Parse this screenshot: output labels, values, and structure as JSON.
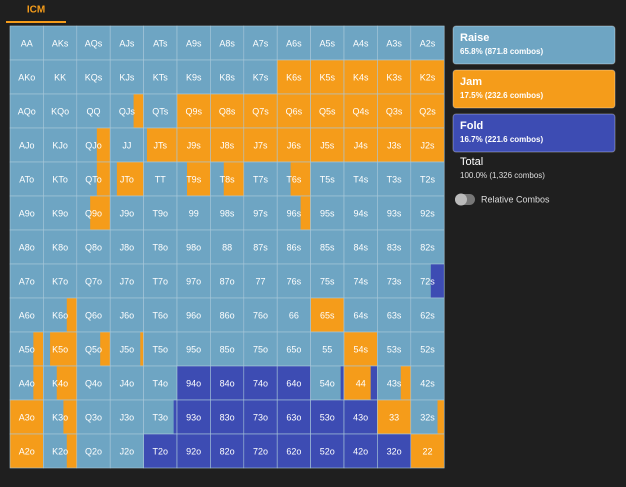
{
  "tab": "ICM",
  "actions": [
    {
      "name": "Raise",
      "detail": "65.8% (871.8 combos)",
      "color": "#6ea5c3"
    },
    {
      "name": "Jam",
      "detail": "17.5% (232.6 combos)",
      "color": "#f59c1a"
    },
    {
      "name": "Fold",
      "detail": "16.7% (221.6 combos)",
      "color": "#3d4cb3"
    }
  ],
  "total": {
    "name": "Total",
    "detail": "100.0% (1,326 combos)"
  },
  "toggle": "Relative Combos",
  "hands": [
    [
      "AA",
      "AKs",
      "AQs",
      "AJs",
      "ATs",
      "A9s",
      "A8s",
      "A7s",
      "A6s",
      "A5s",
      "A4s",
      "A3s",
      "A2s"
    ],
    [
      "AKo",
      "KK",
      "KQs",
      "KJs",
      "KTs",
      "K9s",
      "K8s",
      "K7s",
      "K6s",
      "K5s",
      "K4s",
      "K3s",
      "K2s"
    ],
    [
      "AQo",
      "KQo",
      "QQ",
      "QJs",
      "QTs",
      "Q9s",
      "Q8s",
      "Q7s",
      "Q6s",
      "Q5s",
      "Q4s",
      "Q3s",
      "Q2s"
    ],
    [
      "AJo",
      "KJo",
      "QJo",
      "JJ",
      "JTs",
      "J9s",
      "J8s",
      "J7s",
      "J6s",
      "J5s",
      "J4s",
      "J3s",
      "J2s"
    ],
    [
      "ATo",
      "KTo",
      "QTo",
      "JTo",
      "TT",
      "T9s",
      "T8s",
      "T7s",
      "T6s",
      "T5s",
      "T4s",
      "T3s",
      "T2s"
    ],
    [
      "A9o",
      "K9o",
      "Q9o",
      "J9o",
      "T9o",
      "99",
      "98s",
      "97s",
      "96s",
      "95s",
      "94s",
      "93s",
      "92s"
    ],
    [
      "A8o",
      "K8o",
      "Q8o",
      "J8o",
      "T8o",
      "98o",
      "88",
      "87s",
      "86s",
      "85s",
      "84s",
      "83s",
      "82s"
    ],
    [
      "A7o",
      "K7o",
      "Q7o",
      "J7o",
      "T7o",
      "97o",
      "87o",
      "77",
      "76s",
      "75s",
      "74s",
      "73s",
      "72s"
    ],
    [
      "A6o",
      "K6o",
      "Q6o",
      "J6o",
      "T6o",
      "96o",
      "86o",
      "76o",
      "66",
      "65s",
      "64s",
      "63s",
      "62s"
    ],
    [
      "A5o",
      "K5o",
      "Q5o",
      "J5o",
      "T5o",
      "95o",
      "85o",
      "75o",
      "65o",
      "55",
      "54s",
      "53s",
      "52s"
    ],
    [
      "A4o",
      "K4o",
      "Q4o",
      "J4o",
      "T4o",
      "94o",
      "84o",
      "74o",
      "64o",
      "54o",
      "44",
      "43s",
      "42s"
    ],
    [
      "A3o",
      "K3o",
      "Q3o",
      "J3o",
      "T3o",
      "93o",
      "83o",
      "73o",
      "63o",
      "53o",
      "43o",
      "33",
      "32s"
    ],
    [
      "A2o",
      "K2o",
      "Q2o",
      "J2o",
      "T2o",
      "92o",
      "82o",
      "72o",
      "62o",
      "52o",
      "42o",
      "32o",
      "22"
    ]
  ],
  "raise": [
    [
      1,
      1,
      1,
      1,
      1,
      1,
      1,
      1,
      1,
      1,
      1,
      1,
      1
    ],
    [
      1,
      1,
      1,
      1,
      1,
      1,
      1,
      1,
      0,
      0,
      0,
      0,
      0
    ],
    [
      1,
      1,
      1,
      0.7,
      1,
      0,
      0,
      0,
      0,
      0,
      0,
      0,
      0
    ],
    [
      1,
      1,
      0.6,
      1,
      0.1,
      0,
      0,
      0,
      0,
      0,
      0,
      0,
      0
    ],
    [
      1,
      1,
      0.6,
      0.2,
      1,
      0.3,
      0.4,
      1,
      0.4,
      1,
      1,
      1,
      1
    ],
    [
      1,
      1,
      0.4,
      1,
      1,
      1,
      1,
      1,
      0.7,
      1,
      1,
      1,
      1
    ],
    [
      1,
      1,
      1,
      1,
      1,
      1,
      1,
      1,
      1,
      1,
      1,
      1,
      1
    ],
    [
      1,
      1,
      1,
      1,
      1,
      1,
      1,
      1,
      1,
      1,
      1,
      1,
      0.6
    ],
    [
      1,
      0.7,
      1,
      1,
      1,
      1,
      1,
      1,
      1,
      0,
      1,
      1,
      1
    ],
    [
      0.7,
      0.2,
      0.7,
      0.9,
      1,
      1,
      1,
      1,
      1,
      1,
      0,
      1,
      1
    ],
    [
      0.7,
      0.4,
      1,
      1,
      1,
      0,
      0,
      0,
      0,
      0.9,
      0,
      0.7,
      1
    ],
    [
      0,
      0.6,
      1,
      1,
      0.9,
      0,
      0,
      0,
      0,
      0,
      0,
      0,
      0.8
    ],
    [
      0,
      0.7,
      1,
      1,
      0,
      0,
      0,
      0,
      0,
      0,
      0,
      0,
      0
    ]
  ],
  "jam": [
    [
      0,
      0,
      0,
      0,
      0,
      0,
      0,
      0,
      0,
      0,
      0,
      0,
      0
    ],
    [
      0,
      0,
      0,
      0,
      0,
      0,
      0,
      0,
      1,
      1,
      1,
      1,
      1
    ],
    [
      0,
      0,
      0,
      0.3,
      0,
      1,
      1,
      1,
      1,
      1,
      1,
      1,
      1
    ],
    [
      0,
      0,
      0.4,
      0,
      0.9,
      1,
      1,
      1,
      1,
      1,
      1,
      1,
      1
    ],
    [
      0,
      0,
      0.4,
      0.8,
      0,
      0.7,
      0.6,
      0,
      0.6,
      0,
      0,
      0,
      0
    ],
    [
      0,
      0,
      0.6,
      0,
      0,
      0,
      0,
      0,
      0.3,
      0,
      0,
      0,
      0
    ],
    [
      0,
      0,
      0,
      0,
      0,
      0,
      0,
      0,
      0,
      0,
      0,
      0,
      0
    ],
    [
      0,
      0,
      0,
      0,
      0,
      0,
      0,
      0,
      0,
      0,
      0,
      0,
      0
    ],
    [
      0,
      0.3,
      0,
      0,
      0,
      0,
      0,
      0,
      0,
      1,
      0,
      0,
      0
    ],
    [
      0.3,
      0.8,
      0.3,
      0.1,
      0,
      0,
      0,
      0,
      0,
      0,
      1,
      0,
      0
    ],
    [
      0.3,
      0.6,
      0,
      0,
      0,
      0,
      0,
      0,
      0,
      0,
      0.8,
      0.3,
      0
    ],
    [
      1,
      0.4,
      0,
      0,
      0,
      0,
      0,
      0,
      0,
      0,
      0,
      1,
      0.2
    ],
    [
      1,
      0.3,
      0,
      0,
      0,
      0,
      0,
      0,
      0,
      0,
      0,
      0,
      1
    ]
  ],
  "fold": [
    [
      0,
      0,
      0,
      0,
      0,
      0,
      0,
      0,
      0,
      0,
      0,
      0,
      0
    ],
    [
      0,
      0,
      0,
      0,
      0,
      0,
      0,
      0,
      0,
      0,
      0,
      0,
      0
    ],
    [
      0,
      0,
      0,
      0,
      0,
      0,
      0,
      0,
      0,
      0,
      0,
      0,
      0
    ],
    [
      0,
      0,
      0,
      0,
      0,
      0,
      0,
      0,
      0,
      0,
      0,
      0,
      0
    ],
    [
      0,
      0,
      0,
      0,
      0,
      0,
      0,
      0,
      0,
      0,
      0,
      0,
      0
    ],
    [
      0,
      0,
      0,
      0,
      0,
      0,
      0,
      0,
      0,
      0,
      0,
      0,
      0
    ],
    [
      0,
      0,
      0,
      0,
      0,
      0,
      0,
      0,
      0,
      0,
      0,
      0,
      0
    ],
    [
      0,
      0,
      0,
      0,
      0,
      0,
      0,
      0,
      0,
      0,
      0,
      0,
      0.4
    ],
    [
      0,
      0,
      0,
      0,
      0,
      0,
      0,
      0,
      0,
      0,
      0,
      0,
      0
    ],
    [
      0,
      0,
      0,
      0,
      0,
      0,
      0,
      0,
      0,
      0,
      0,
      0,
      0
    ],
    [
      0,
      0,
      0,
      0,
      0,
      1,
      1,
      1,
      1,
      0.1,
      0.2,
      0,
      0
    ],
    [
      0,
      0,
      0,
      0,
      0.1,
      1,
      1,
      1,
      1,
      1,
      1,
      0,
      0
    ],
    [
      0,
      0,
      0,
      0,
      1,
      1,
      1,
      1,
      1,
      1,
      1,
      1,
      0
    ]
  ]
}
